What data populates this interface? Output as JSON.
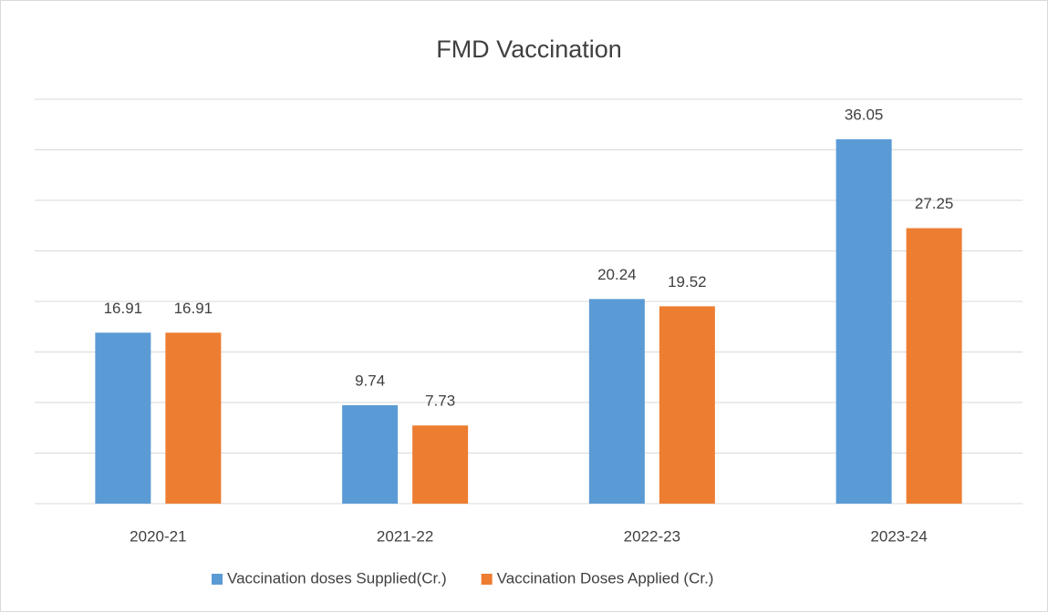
{
  "chart_data": {
    "type": "bar",
    "title": "FMD Vaccination",
    "categories": [
      "2020-21",
      "2021-22",
      "2022-23",
      "2023-24"
    ],
    "series": [
      {
        "name": "Vaccination doses Supplied(Cr.)",
        "color": "#5b9bd5",
        "values": [
          16.91,
          9.74,
          20.24,
          36.05
        ]
      },
      {
        "name": "Vaccination Doses Applied (Cr.)",
        "color": "#ed7d31",
        "values": [
          16.91,
          7.73,
          19.52,
          27.25
        ]
      }
    ],
    "ylim": [
      0,
      40
    ],
    "yticks": [
      0,
      5,
      10,
      15,
      20,
      25,
      30,
      35,
      40
    ],
    "grid": true,
    "legend": "bottom"
  }
}
